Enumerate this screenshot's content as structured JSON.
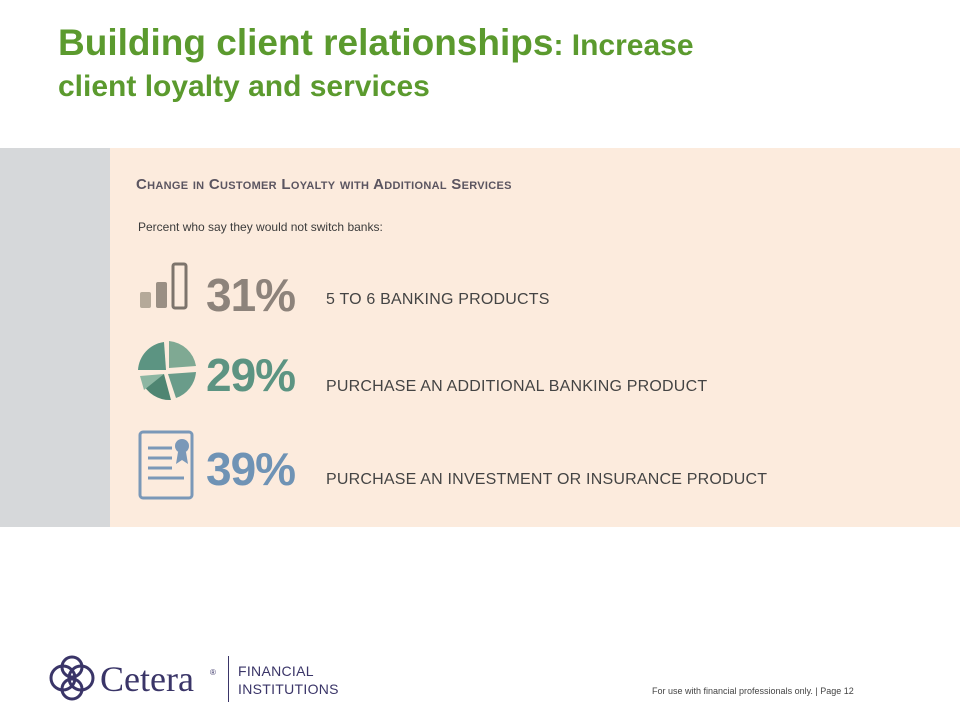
{
  "slide": {
    "title_main": "Building client relationships",
    "title_rest": ": Increase",
    "title_line2": "client loyalty and services"
  },
  "panel": {
    "title": "Change in Customer Loyalty with Additional Services",
    "subtitle": "Percent who say they would not switch banks:",
    "stats": [
      {
        "value": "31%",
        "label": "5 TO 6 BANKING PRODUCTS",
        "icon": "bar-chart-icon",
        "color": "#8d837b"
      },
      {
        "value": "29%",
        "label": "PURCHASE AN ADDITIONAL BANKING PRODUCT",
        "icon": "pie-chart-icon",
        "color": "#5c9482"
      },
      {
        "value": "39%",
        "label": "PURCHASE AN INVESTMENT OR INSURANCE PRODUCT",
        "icon": "certificate-icon",
        "color": "#6f93b5"
      }
    ]
  },
  "footer": {
    "logo_word": "Cetera",
    "logo_reg": "®",
    "logo_line1": "FINANCIAL",
    "logo_line2": "INSTITUTIONS",
    "note": "For use with financial professionals only.  |  Page 12"
  },
  "colors": {
    "title_green": "#5b9a2e",
    "panel_bg": "#fcebdd",
    "side_bar": "#d6d8da",
    "brand_navy": "#3a3568"
  }
}
